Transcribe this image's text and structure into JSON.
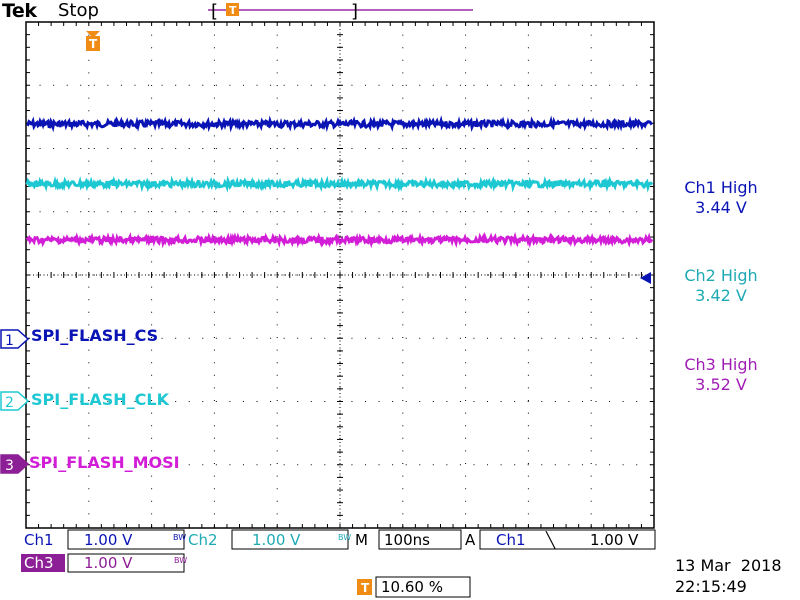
{
  "header": {
    "brand": "Tek",
    "acquisition_state": "Stop",
    "trigger_marker": "T"
  },
  "colors": {
    "ch1": "#0a14b4",
    "ch2": "#1ec8d2",
    "ch3": "#d21ed7",
    "ch3_dark": "#8c1e96",
    "grid": "#000000",
    "trigger": "#f08c14"
  },
  "readouts": [
    {
      "label": "Ch1 High",
      "value": "3.44 V"
    },
    {
      "label": "Ch2 High",
      "value": "3.42 V"
    },
    {
      "label": "Ch3 High",
      "value": "3.52 V"
    }
  ],
  "channels": [
    {
      "number": "1",
      "name": "SPI_FLASH_CS"
    },
    {
      "number": "2",
      "name": "SPI_FLASH_CLK"
    },
    {
      "number": "3",
      "name": "SPI_FLASH_MOSI"
    }
  ],
  "statusbar": {
    "ch1_label": "Ch1",
    "ch1_scale": "1.00 V",
    "bw_symbol": "BW",
    "ch2_label": "Ch2",
    "ch2_scale": "1.00 V",
    "timebase_label": "M",
    "timebase_value": "100ns",
    "trigger_label": "A",
    "trigger_source": "Ch1",
    "trigger_slope": "╲",
    "trigger_level": "1.00 V",
    "ch3_label": "Ch3",
    "ch3_scale": "1.00 V",
    "trigger_position": "10.60 %"
  },
  "timestamp": {
    "date": "13 Mar  2018",
    "time": "22:15:49"
  }
}
